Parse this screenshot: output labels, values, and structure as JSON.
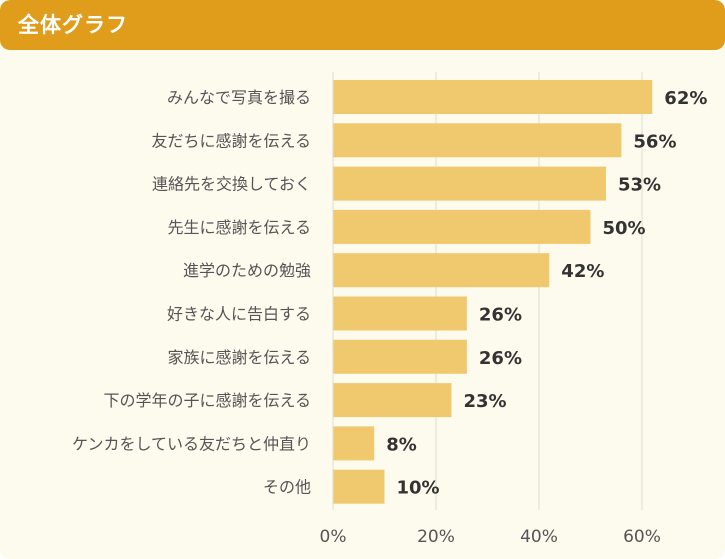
{
  "header": {
    "title": "全体グラフ"
  },
  "colors": {
    "header": "#e09d1b",
    "bar": "#f0c96e",
    "background": "#fdfbee",
    "grid": "#dcdcd0",
    "label": "#555555",
    "value": "#333333"
  },
  "chart_data": {
    "type": "bar",
    "orientation": "horizontal",
    "title": "全体グラフ",
    "categories": [
      "みんなで写真を撮る",
      "友だちに感謝を伝える",
      "連絡先を交換しておく",
      "先生に感謝を伝える",
      "進学のための勉強",
      "好きな人に告白する",
      "家族に感謝を伝える",
      "下の学年の子に感謝を伝える",
      "ケンカをしている友だちと仲直り",
      "その他"
    ],
    "values": [
      62,
      56,
      53,
      50,
      42,
      26,
      26,
      23,
      8,
      10
    ],
    "value_labels": [
      "62%",
      "56%",
      "53%",
      "50%",
      "42%",
      "26%",
      "26%",
      "23%",
      "8%",
      "10%"
    ],
    "xticks": [
      0,
      20,
      40,
      60
    ],
    "xtick_labels": [
      "0%",
      "20%",
      "40%",
      "60%"
    ],
    "xlim": [
      0,
      70
    ],
    "xlabel": "",
    "ylabel": "",
    "grid": true
  }
}
